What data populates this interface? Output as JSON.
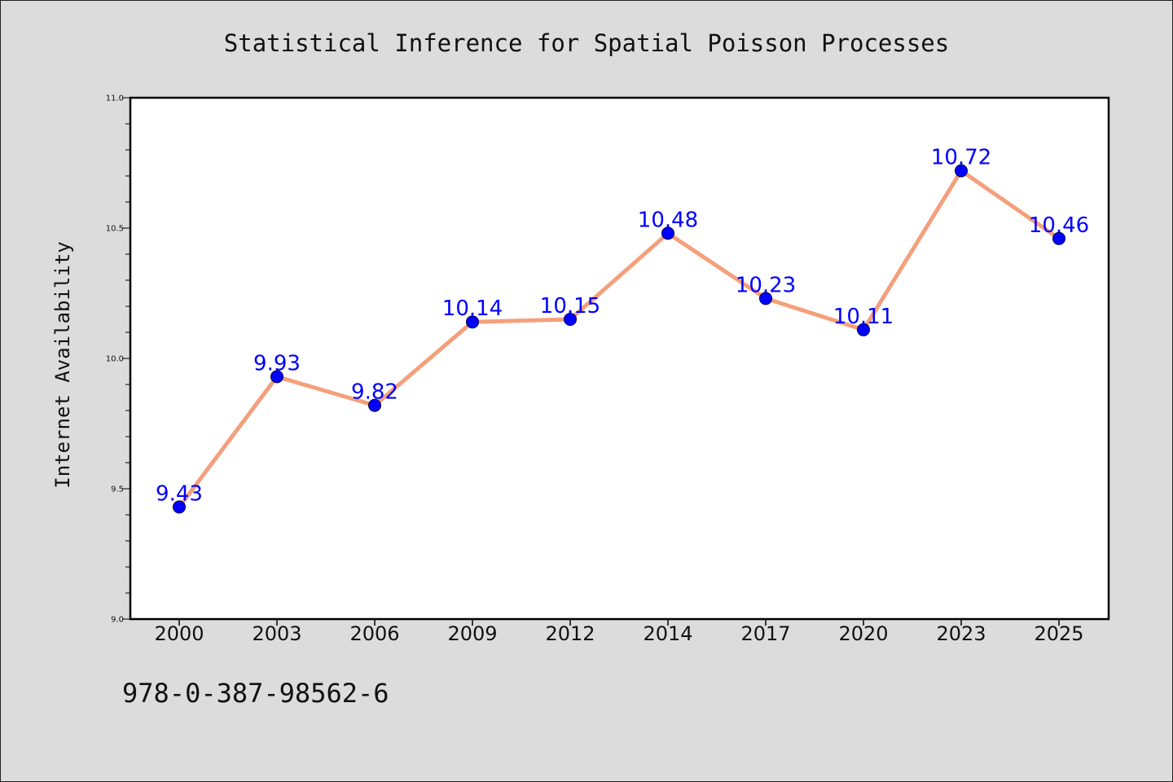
{
  "chart_data": {
    "type": "line",
    "title": "Statistical Inference for Spatial Poisson Processes",
    "xlabel": "",
    "ylabel": "Internet Availability",
    "categories": [
      "2000",
      "2003",
      "2006",
      "2009",
      "2012",
      "2014",
      "2017",
      "2020",
      "2023",
      "2025"
    ],
    "series": [
      {
        "values": [
          9.43,
          9.93,
          9.82,
          10.14,
          10.15,
          10.48,
          10.23,
          10.11,
          10.72,
          10.46
        ],
        "labels": [
          "9.43",
          "9.93",
          "9.82",
          "10.14",
          "10.15",
          "10.48",
          "10.23",
          "10.11",
          "10.72",
          "10.46"
        ]
      }
    ],
    "ylim": [
      9.0,
      11.0
    ],
    "yticks": [
      "9.0",
      "9.5",
      "10.0",
      "10.5",
      "11.0"
    ],
    "grid": false,
    "colors": {
      "line": "#f4a07c",
      "marker": "#0000ff",
      "label": "#0000ff",
      "plot_bg": "#ffffff",
      "page_bg": "#dcdcdc"
    }
  },
  "caption": "978-0-387-98562-6"
}
